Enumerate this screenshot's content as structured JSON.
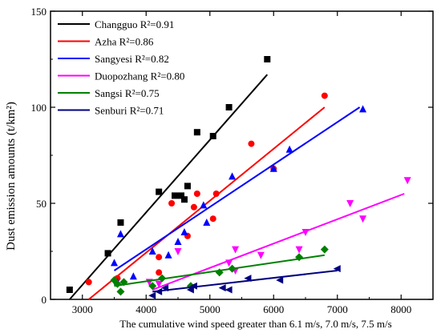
{
  "chart_data": {
    "type": "scatter",
    "xlabel": "The cumulative wind speed greater than 6.1 m/s, 7.0 m/s, 7.5 m/s",
    "ylabel": "Dust emission  amounts (t/km²)",
    "xlim": [
      2500,
      8500
    ],
    "ylim": [
      0,
      150
    ],
    "xticks": [
      3000,
      4000,
      5000,
      6000,
      7000,
      8000
    ],
    "yticks": [
      0,
      50,
      100,
      150
    ],
    "legend_position": "top-left",
    "series": [
      {
        "name": "Changguo",
        "r2_label": "R²=0.91",
        "color": "#000000",
        "marker": "square",
        "points": [
          [
            2800,
            5
          ],
          [
            3400,
            24
          ],
          [
            3600,
            40
          ],
          [
            4200,
            56
          ],
          [
            4450,
            54
          ],
          [
            4550,
            54
          ],
          [
            4600,
            52
          ],
          [
            4650,
            59
          ],
          [
            4800,
            87
          ],
          [
            5050,
            85
          ],
          [
            5300,
            100
          ],
          [
            5900,
            125
          ]
        ],
        "fit": [
          [
            2800,
            0
          ],
          [
            5900,
            117
          ]
        ]
      },
      {
        "name": "Azha",
        "r2_label": "R²=0.86",
        "color": "#ff0000",
        "marker": "circle",
        "points": [
          [
            3100,
            9
          ],
          [
            3550,
            11
          ],
          [
            4200,
            14
          ],
          [
            4200,
            22
          ],
          [
            4400,
            50
          ],
          [
            4650,
            33
          ],
          [
            4750,
            48
          ],
          [
            4800,
            55
          ],
          [
            5050,
            42
          ],
          [
            5100,
            55
          ],
          [
            5650,
            81
          ],
          [
            6000,
            68
          ],
          [
            6800,
            106
          ]
        ],
        "fit": [
          [
            3100,
            0
          ],
          [
            6800,
            100
          ]
        ]
      },
      {
        "name": "Sangyesi",
        "r2_label": "R²=0.82",
        "color": "#0000ff",
        "marker": "triangle-up",
        "points": [
          [
            3500,
            19
          ],
          [
            3550,
            9
          ],
          [
            3600,
            34
          ],
          [
            3800,
            12
          ],
          [
            4100,
            25
          ],
          [
            4350,
            23
          ],
          [
            4500,
            30
          ],
          [
            4600,
            35
          ],
          [
            4900,
            49
          ],
          [
            4950,
            40
          ],
          [
            5350,
            64
          ],
          [
            6000,
            68
          ],
          [
            6250,
            78
          ],
          [
            7400,
            99
          ]
        ],
        "fit": [
          [
            3500,
            15
          ],
          [
            7350,
            100
          ]
        ]
      },
      {
        "name": "Duopozhang",
        "r2_label": "R²=0.80",
        "color": "#ff00ff",
        "marker": "triangle-down",
        "points": [
          [
            4050,
            9
          ],
          [
            4200,
            8
          ],
          [
            4500,
            25
          ],
          [
            5300,
            19
          ],
          [
            5400,
            26
          ],
          [
            5400,
            15
          ],
          [
            5800,
            23
          ],
          [
            6400,
            26
          ],
          [
            6500,
            35
          ],
          [
            7200,
            50
          ],
          [
            7400,
            42
          ],
          [
            8100,
            62
          ]
        ],
        "fit": [
          [
            4100,
            5
          ],
          [
            8050,
            55
          ]
        ]
      },
      {
        "name": "Sangsi",
        "r2_label": "R²=0.75",
        "color": "#008000",
        "marker": "diamond",
        "points": [
          [
            3500,
            10
          ],
          [
            3550,
            8
          ],
          [
            3600,
            4
          ],
          [
            3650,
            9
          ],
          [
            4100,
            7
          ],
          [
            4250,
            11
          ],
          [
            4700,
            7
          ],
          [
            5150,
            14
          ],
          [
            5350,
            16
          ],
          [
            6400,
            22
          ],
          [
            6800,
            26
          ]
        ],
        "fit": [
          [
            3500,
            7
          ],
          [
            6800,
            23
          ]
        ]
      },
      {
        "name": "Senburi",
        "r2_label": "R²=0.71",
        "color": "#000080",
        "marker": "triangle-left",
        "points": [
          [
            4100,
            2
          ],
          [
            4200,
            4
          ],
          [
            4300,
            6
          ],
          [
            4700,
            5
          ],
          [
            4750,
            7
          ],
          [
            5200,
            6
          ],
          [
            5300,
            5
          ],
          [
            5600,
            11
          ],
          [
            6100,
            10
          ],
          [
            7000,
            16
          ]
        ],
        "fit": [
          [
            4100,
            4
          ],
          [
            7000,
            15
          ]
        ]
      }
    ]
  }
}
